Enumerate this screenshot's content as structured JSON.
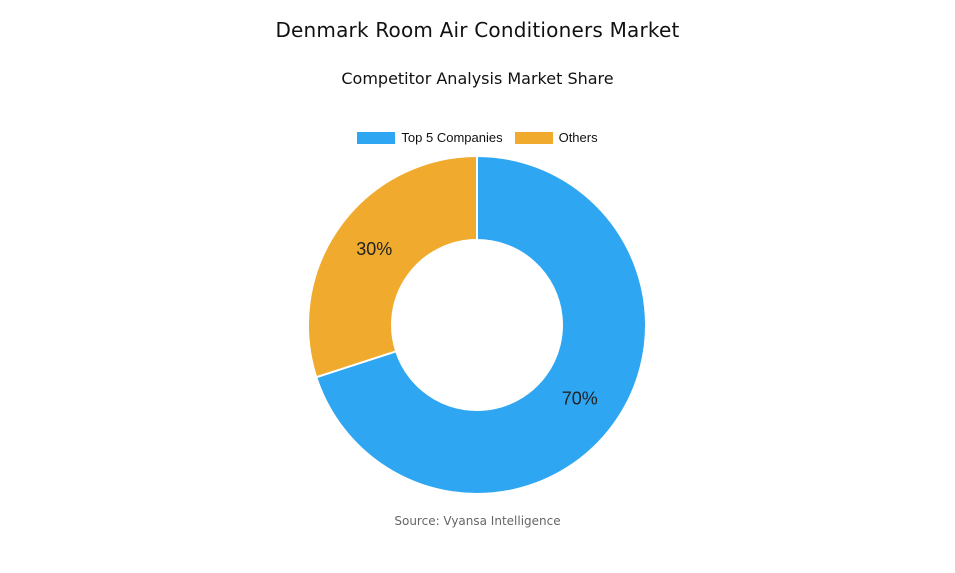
{
  "chart_data": {
    "type": "pie",
    "title": "Denmark Room Air Conditioners Market",
    "subtitle": "Competitor Analysis Market Share",
    "legend_position": "top-center",
    "slices": [
      {
        "name": "Top 5 Companies",
        "value": 70,
        "label": "70%",
        "color": "#2ea6f2"
      },
      {
        "name": "Others",
        "value": 30,
        "label": "30%",
        "color": "#f0aa2e"
      }
    ],
    "donut": true,
    "source": "Source: Vyansa Intelligence"
  }
}
